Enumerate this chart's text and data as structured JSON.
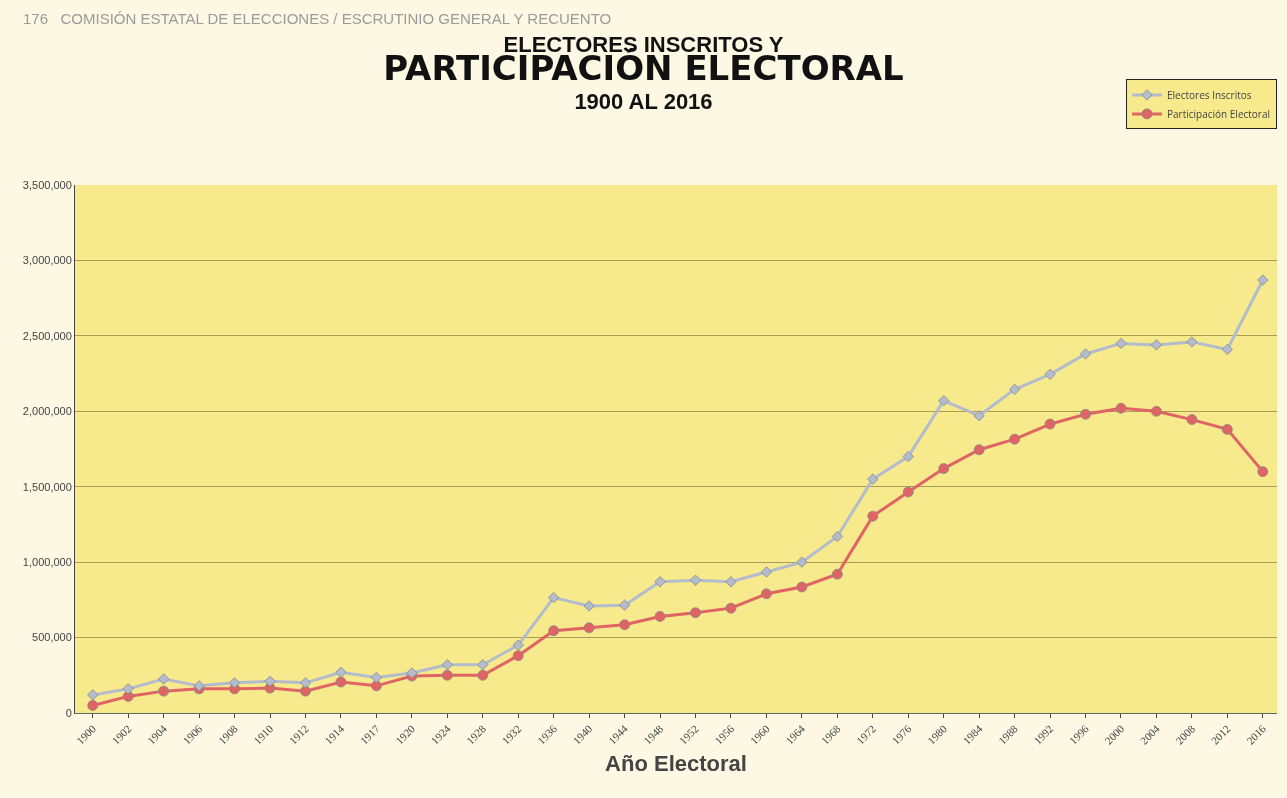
{
  "chart_data": {
    "type": "line",
    "title": "ELECTORES INSCRITOS Y\nPARTICIPACIÓN ELECTORAL\n1900 AL 2016",
    "xlabel": "Año Electoral",
    "annotations": [
      "176   COMISIÓN ESTATAL DE ELECCIONES / ESCRUTINIO GENERAL Y RECUENTO"
    ],
    "categories": [
      "1900",
      "1902",
      "1904",
      "1906",
      "1908",
      "1910",
      "1912",
      "1914",
      "1917",
      "1920",
      "1924",
      "1928",
      "1932",
      "1936",
      "1940",
      "1944",
      "1948",
      "1952",
      "1956",
      "1960",
      "1964",
      "1968",
      "1972",
      "1976",
      "1980",
      "1984",
      "1988",
      "1992",
      "1996",
      "2000",
      "2004",
      "2008",
      "2012",
      "2016"
    ],
    "series": [
      {
        "name": "Electores Inscritos",
        "color": "#b3bccc",
        "marker": "diamond",
        "values": [
          120000,
          160000,
          225000,
          180000,
          200000,
          210000,
          200000,
          270000,
          235000,
          265000,
          320000,
          320000,
          450000,
          765000,
          710000,
          715000,
          870000,
          880000,
          870000,
          935000,
          1000000,
          1170000,
          1550000,
          1700000,
          2070000,
          1970000,
          2145000,
          2245000,
          2380000,
          2450000,
          2440000,
          2460000,
          2410000,
          2870000
        ]
      },
      {
        "name": "Participación Electoral",
        "color": "#e06464",
        "marker": "circle",
        "values": [
          50000,
          110000,
          145000,
          160000,
          160000,
          165000,
          145000,
          205000,
          180000,
          245000,
          250000,
          250000,
          380000,
          545000,
          565000,
          585000,
          640000,
          665000,
          695000,
          790000,
          835000,
          920000,
          1305000,
          1465000,
          1620000,
          1745000,
          1815000,
          1915000,
          1980000,
          2020000,
          2000000,
          1945000,
          1880000,
          1600000
        ]
      }
    ],
    "ylim": [
      0,
      3500000
    ],
    "yticks": [
      {
        "value": 0,
        "label": "0"
      },
      {
        "value": 500000,
        "label": "500,000"
      },
      {
        "value": 1000000,
        "label": "1,000,000"
      },
      {
        "value": 1500000,
        "label": "1,500,000"
      },
      {
        "value": 2000000,
        "label": "2,000,000"
      },
      {
        "value": 2500000,
        "label": "2,500,000"
      },
      {
        "value": 3000000,
        "label": "3,000,000"
      },
      {
        "value": 3500000,
        "label": "3,500,000"
      }
    ],
    "grid": "y",
    "legend": "top right",
    "line_style": "solid"
  }
}
